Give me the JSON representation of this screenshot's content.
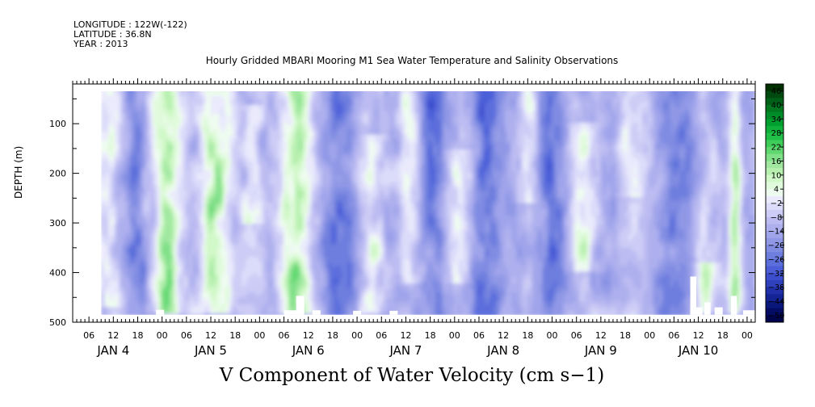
{
  "header": {
    "longitude": "LONGITUDE : 122W(-122)",
    "latitude": "LATITUDE : 36.8N",
    "year": "YEAR : 2013"
  },
  "chart_data": {
    "type": "heatmap",
    "title": "Hourly Gridded MBARI Mooring M1 Sea Water Temperature and Salinity Observations",
    "variable_title": "V Component of Water Velocity (cm s−1)",
    "ylabel": "DEPTH (m)",
    "y_axis": {
      "min": 20,
      "max": 500,
      "inverted": true,
      "tick_labels": [
        100,
        200,
        300,
        400,
        500
      ],
      "data_bottom": 485
    },
    "x_axis": {
      "start_hour": 2,
      "end_hour": 170,
      "hour_ticks": [
        "06",
        "12",
        "18",
        "00",
        "06",
        "12",
        "18",
        "00",
        "06",
        "12",
        "18",
        "00",
        "06",
        "12",
        "18",
        "00",
        "06",
        "12",
        "18",
        "00",
        "06",
        "12",
        "18",
        "00",
        "06",
        "12",
        "18",
        "00"
      ],
      "hour_tick_values": [
        6,
        12,
        18,
        24,
        30,
        36,
        42,
        48,
        54,
        60,
        66,
        72,
        78,
        84,
        90,
        96,
        102,
        108,
        114,
        120,
        126,
        132,
        138,
        144,
        150,
        156,
        162,
        168
      ],
      "day_labels": [
        "JAN  4",
        "JAN  5",
        "JAN  6",
        "JAN  7",
        "JAN  8",
        "JAN  9",
        "JAN 10"
      ],
      "day_label_values": [
        12,
        36,
        60,
        84,
        108,
        132,
        156
      ]
    },
    "data_start_hour": 9,
    "colorbar": {
      "labels": [
        "46",
        "40",
        "34",
        "28",
        "22",
        "16",
        "10",
        "4",
        "−2",
        "−8",
        "−14",
        "−20",
        "−26",
        "−32",
        "−38",
        "−44",
        "−50"
      ],
      "levels": [
        49,
        46,
        43,
        40,
        37,
        34,
        31,
        28,
        25,
        22,
        19,
        16,
        13,
        10,
        7,
        4,
        1,
        -2,
        -5,
        -8,
        -11,
        -14,
        -17,
        -20,
        -23,
        -26,
        -29,
        -32,
        -35,
        -38,
        -41,
        -44,
        -47,
        -50
      ],
      "colors": [
        "#003000",
        "#004a10",
        "#006018",
        "#00781f",
        "#008c28",
        "#00a030",
        "#10b03a",
        "#20c048",
        "#40cc58",
        "#60d870",
        "#80e088",
        "#a0e8a0",
        "#b8f0b0",
        "#d0f8c8",
        "#e0fadc",
        "#eefcf0",
        "#eaeafc",
        "#dcdcfa",
        "#ccccf6",
        "#bcbcf2",
        "#aeb0ee",
        "#a0a4ea",
        "#9098e6",
        "#808ce2",
        "#6e7ede",
        "#5c6edc",
        "#4c5ed8",
        "#3c4ecc",
        "#2e40bc",
        "#2030a8",
        "#142494",
        "#0a187c",
        "#040c64",
        "#00044c"
      ]
    },
    "field": {
      "base": -13,
      "green_bands": [
        {
          "hour": 11,
          "width": 3,
          "amp": 13,
          "depth_min": 20,
          "depth_max": 470
        },
        {
          "hour": 25,
          "width": 4,
          "amp": 22,
          "depth_min": 20,
          "depth_max": 480
        },
        {
          "hour": 37,
          "width": 4,
          "amp": 22,
          "depth_min": 20,
          "depth_max": 480
        },
        {
          "hour": 46,
          "width": 2.5,
          "amp": 14,
          "depth_min": 60,
          "depth_max": 300
        },
        {
          "hour": 57,
          "width": 4,
          "amp": 26,
          "depth_min": 20,
          "depth_max": 480
        },
        {
          "hour": 76,
          "width": 3,
          "amp": 14,
          "depth_min": 120,
          "depth_max": 480
        },
        {
          "hour": 85,
          "width": 3,
          "amp": 13,
          "depth_min": 20,
          "depth_max": 420
        },
        {
          "hour": 97,
          "width": 3,
          "amp": 13,
          "depth_min": 150,
          "depth_max": 420
        },
        {
          "hour": 114,
          "width": 2.5,
          "amp": 12,
          "depth_min": 20,
          "depth_max": 260
        },
        {
          "hour": 128,
          "width": 3,
          "amp": 15,
          "depth_min": 100,
          "depth_max": 400
        },
        {
          "hour": 140,
          "width": 3,
          "amp": 12,
          "depth_min": 20,
          "depth_max": 250
        },
        {
          "hour": 158,
          "width": 3,
          "amp": 16,
          "depth_min": 380,
          "depth_max": 480
        },
        {
          "hour": 165,
          "width": 1.5,
          "amp": 22,
          "depth_min": 20,
          "depth_max": 480
        }
      ],
      "blue_bands": [
        {
          "hour": 18,
          "width": 3,
          "amp": 10
        },
        {
          "hour": 67,
          "width": 4,
          "amp": 10
        },
        {
          "hour": 90,
          "width": 4,
          "amp": 10
        },
        {
          "hour": 104,
          "width": 4,
          "amp": 12
        },
        {
          "hour": 120,
          "width": 3,
          "amp": 10
        },
        {
          "hour": 150,
          "width": 4,
          "amp": 10
        }
      ]
    },
    "gaps": [
      {
        "hour_start": 22.5,
        "hour_end": 24.5,
        "depth_min": 475
      },
      {
        "hour_start": 54,
        "hour_end": 58,
        "depth_min": 476
      },
      {
        "hour_start": 57,
        "hour_end": 59,
        "depth_min": 447
      },
      {
        "hour_start": 61,
        "hour_end": 63,
        "depth_min": 476
      },
      {
        "hour_start": 71,
        "hour_end": 73,
        "depth_min": 477
      },
      {
        "hour_start": 80,
        "hour_end": 82,
        "depth_min": 477
      },
      {
        "hour_start": 154,
        "hour_end": 155.5,
        "depth_min": 408
      },
      {
        "hour_start": 155.5,
        "hour_end": 157,
        "depth_min": 470
      },
      {
        "hour_start": 157.5,
        "hour_end": 159,
        "depth_min": 460
      },
      {
        "hour_start": 160,
        "hour_end": 162,
        "depth_min": 470
      },
      {
        "hour_start": 164,
        "hour_end": 165.5,
        "depth_min": 447
      },
      {
        "hour_start": 167,
        "hour_end": 170,
        "depth_min": 476
      }
    ]
  }
}
